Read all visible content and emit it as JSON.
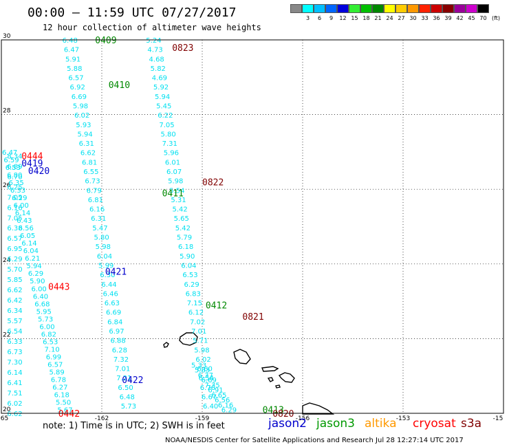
{
  "header": {
    "title": "00:00 — 11:59 UTC 07/27/2017",
    "subtitle": "12 hour collection of altimeter wave heights"
  },
  "color_scale": {
    "unit": "(ft)",
    "swatches": [
      {
        "label": "",
        "color": "#888888"
      },
      {
        "label": "3",
        "color": "#00ffff"
      },
      {
        "label": "6",
        "color": "#00bfff"
      },
      {
        "label": "9",
        "color": "#0066ff"
      },
      {
        "label": "12",
        "color": "#0000dd"
      },
      {
        "label": "15",
        "color": "#33ee33"
      },
      {
        "label": "18",
        "color": "#00c000"
      },
      {
        "label": "21",
        "color": "#008800"
      },
      {
        "label": "24",
        "color": "#ffff00"
      },
      {
        "label": "27",
        "color": "#ffcc00"
      },
      {
        "label": "30",
        "color": "#ff9900"
      },
      {
        "label": "33",
        "color": "#ff2200"
      },
      {
        "label": "36",
        "color": "#cc0000"
      },
      {
        "label": "39",
        "color": "#880000"
      },
      {
        "label": "42",
        "color": "#990099"
      },
      {
        "label": "45",
        "color": "#cc00cc"
      },
      {
        "label": "70",
        "color": "#000000"
      }
    ]
  },
  "map": {
    "lat_ticks": [
      "30",
      "28",
      "26",
      "24",
      "22",
      "20"
    ],
    "lon_ticks": [
      "-165",
      "-162",
      "-159",
      "-156",
      "-153",
      "-15"
    ],
    "swh_color": "#00e0f0",
    "track_labels": [
      {
        "text": "0409",
        "lon": -162.2,
        "lat": 30.0,
        "color": "#008800"
      },
      {
        "text": "0410",
        "lon": -161.8,
        "lat": 28.8,
        "color": "#008800"
      },
      {
        "text": "0411",
        "lon": -160.2,
        "lat": 25.9,
        "color": "#008800"
      },
      {
        "text": "0412",
        "lon": -158.9,
        "lat": 22.9,
        "color": "#008800"
      },
      {
        "text": "0413",
        "lon": -157.2,
        "lat": 20.1,
        "color": "#008800"
      },
      {
        "text": "0419",
        "lon": -164.4,
        "lat": 26.7,
        "color": "#0000cc"
      },
      {
        "text": "0420",
        "lon": -164.2,
        "lat": 26.5,
        "color": "#0000cc"
      },
      {
        "text": "0421",
        "lon": -161.9,
        "lat": 23.8,
        "color": "#0000cc"
      },
      {
        "text": "0422",
        "lon": -161.4,
        "lat": 20.9,
        "color": "#0000cc"
      },
      {
        "text": "0444",
        "lon": -164.4,
        "lat": 26.9,
        "color": "#ff0000"
      },
      {
        "text": "0443",
        "lon": -163.6,
        "lat": 23.4,
        "color": "#ff0000"
      },
      {
        "text": "0442",
        "lon": -163.3,
        "lat": 20.0,
        "color": "#ff0000"
      },
      {
        "text": "0823",
        "lon": -159.9,
        "lat": 29.8,
        "color": "#800000"
      },
      {
        "text": "0822",
        "lon": -159.0,
        "lat": 26.2,
        "color": "#800000"
      },
      {
        "text": "0821",
        "lon": -157.8,
        "lat": 22.6,
        "color": "#800000"
      },
      {
        "text": "0820",
        "lon": -156.9,
        "lat": 20.0,
        "color": "#800000"
      }
    ],
    "tracks": [
      {
        "start": [
          -162.95,
          30.0
        ],
        "end": [
          -161.2,
          20.2
        ],
        "values": [
          "6.48",
          "6.47",
          "5.91",
          "5.88",
          "6.57",
          "6.92",
          "6.69",
          "5.98",
          "6.02",
          "5.93",
          "5.94",
          "6.31",
          "6.62",
          "6.81",
          "6.55",
          "6.73",
          "6.79",
          "6.81",
          "6.16",
          "6.31",
          "5.47",
          "5.80",
          "5.98",
          "6.04",
          "5.99",
          "6.30",
          "6.44",
          "6.46",
          "6.63",
          "6.69",
          "6.84",
          "6.97",
          "6.88",
          "6.28",
          "7.32",
          "7.01",
          "7.21",
          "6.50",
          "6.48",
          "5.73"
        ]
      },
      {
        "start": [
          -160.45,
          30.0
        ],
        "end": [
          -158.75,
          20.2
        ],
        "values": [
          "5.24",
          "4.73",
          "4.68",
          "5.82",
          "4.69",
          "5.92",
          "5.94",
          "5.45",
          "6.22",
          "7.05",
          "5.80",
          "7.31",
          "5.96",
          "6.01",
          "6.07",
          "5.98",
          "5.54",
          "5.31",
          "5.42",
          "5.65",
          "5.42",
          "5.79",
          "6.18",
          "5.90",
          "6.04",
          "6.53",
          "6.29",
          "6.83",
          "7.15",
          "6.12",
          "7.02",
          "7.01",
          "5.71",
          "5.98",
          "6.02",
          "6.60",
          "6.54",
          "6.76",
          "6.67",
          "6.40"
        ]
      },
      {
        "start": [
          -164.75,
          27.0
        ],
        "end": [
          -163.1,
          20.1
        ],
        "values": [
          "6.47",
          "6.59",
          "6.53",
          "6.80",
          "6.35",
          "6.33",
          "6.29",
          "6.00",
          "6.14",
          "6.43",
          "6.56",
          "6.05",
          "6.14",
          "6.04",
          "6.21",
          "5.94",
          "6.29",
          "5.90",
          "6.00",
          "6.40",
          "6.68",
          "5.95",
          "5.73",
          "6.00",
          "6.82",
          "6.53",
          "7.10",
          "6.99",
          "6.57",
          "5.89",
          "6.78",
          "6.27",
          "6.18",
          "5.50",
          "5.67"
        ]
      },
      {
        "start": [
          -164.6,
          26.9
        ],
        "end": [
          -164.6,
          20.0
        ],
        "values": [
          "8.34",
          "6.89",
          "6.70",
          "6.25",
          "7.05",
          "6.16",
          "7.05",
          "6.38",
          "6.57",
          "6.95",
          "6.29",
          "5.70",
          "5.85",
          "6.62",
          "6.42",
          "6.34",
          "5.57",
          "6.54",
          "6.33",
          "6.73",
          "7.30",
          "6.14",
          "6.41",
          "7.51",
          "6.02",
          "6.62"
        ]
      },
      {
        "start": [
          -159.1,
          21.3
        ],
        "end": [
          -158.2,
          20.1
        ],
        "values": [
          "5.33",
          "5.83",
          "6.37",
          "6.69",
          "7.35",
          "6.91",
          "6.65",
          "6.56",
          "6.16",
          "6.29"
        ]
      }
    ]
  },
  "footer": {
    "note": "note: 1) Time is in UTC; 2) SWH is in feet",
    "satellites": [
      {
        "name": "jason2",
        "color": "#0000cc"
      },
      {
        "name": "jason3",
        "color": "#009900"
      },
      {
        "name": "altika",
        "color": "#ff9900"
      },
      {
        "name": "cryosat",
        "color": "#ff0000"
      },
      {
        "name": "s3a",
        "color": "#800000"
      }
    ],
    "credit": "NOAA/NESDIS Center for Satellite Applications and Research    Jul 28 12:27:14 UTC 2017"
  }
}
